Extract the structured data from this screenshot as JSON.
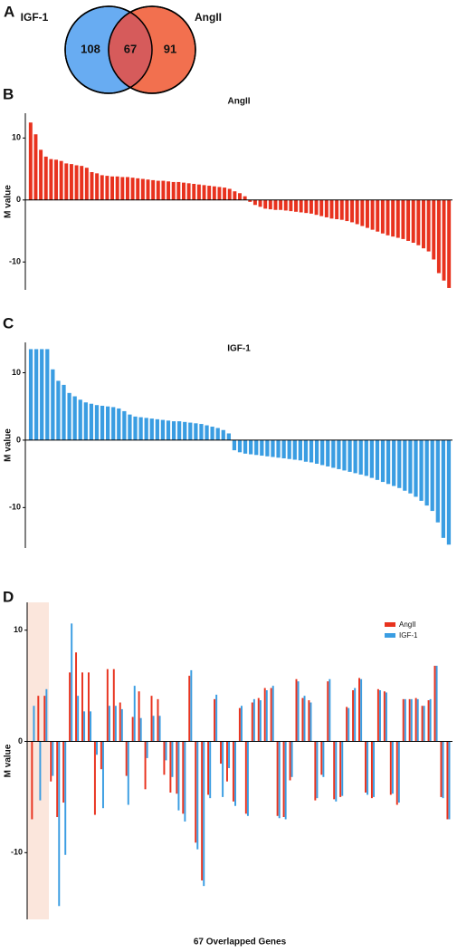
{
  "chart_data": [
    {
      "type": "venn",
      "panel": "A",
      "sets": [
        {
          "name": "IGF-1",
          "color": "#68acf2"
        },
        {
          "name": "AngII",
          "color": "#f2704f"
        }
      ],
      "overlap_color": "#d65b5b",
      "values": [
        108,
        67,
        91
      ]
    },
    {
      "type": "bar",
      "panel": "B",
      "title": "AngII",
      "y_label": "M value",
      "color": "#e8321e",
      "ylim": [
        -14.5,
        14
      ],
      "yticks": [
        -10,
        0,
        10
      ],
      "values": [
        12.5,
        10.6,
        8.1,
        7,
        6.6,
        6.5,
        6.3,
        5.9,
        5.8,
        5.6,
        5.5,
        5.2,
        4.5,
        4.3,
        4,
        3.9,
        3.8,
        3.8,
        3.7,
        3.7,
        3.6,
        3.5,
        3.4,
        3.3,
        3.2,
        3.1,
        3.1,
        3,
        2.9,
        2.9,
        2.8,
        2.7,
        2.6,
        2.5,
        2.4,
        2.3,
        2.2,
        2.1,
        2,
        1.8,
        1.4,
        1.1,
        0.6,
        -0.3,
        -0.8,
        -1.1,
        -1.4,
        -1.5,
        -1.6,
        -1.6,
        -1.7,
        -1.8,
        -1.9,
        -2,
        -2.1,
        -2.2,
        -2.4,
        -2.6,
        -2.8,
        -3,
        -3.1,
        -3.2,
        -3.4,
        -3.6,
        -3.9,
        -4.2,
        -4.5,
        -4.8,
        -5.1,
        -5.4,
        -5.7,
        -5.9,
        -6.1,
        -6.3,
        -6.6,
        -6.9,
        -7.3,
        -7.8,
        -8.3,
        -9.6,
        -11.8,
        -13,
        -14.2
      ]
    },
    {
      "type": "bar",
      "panel": "C",
      "title": "IGF-1",
      "y_label": "M value",
      "color": "#3a9de2",
      "ylim": [
        -16,
        14.5
      ],
      "yticks": [
        -10,
        0,
        10
      ],
      "values": [
        13.5,
        13.5,
        13.5,
        13.5,
        10.5,
        8.8,
        8.2,
        7,
        6.5,
        6,
        5.6,
        5.4,
        5.2,
        5.1,
        5,
        4.9,
        4.7,
        4.3,
        3.8,
        3.5,
        3.4,
        3.3,
        3.2,
        3.1,
        3,
        2.9,
        2.8,
        2.8,
        2.7,
        2.6,
        2.5,
        2.4,
        2.2,
        2,
        1.8,
        1.5,
        1,
        -1.5,
        -1.8,
        -2,
        -2.1,
        -2.2,
        -2.3,
        -2.4,
        -2.5,
        -2.6,
        -2.7,
        -2.8,
        -2.9,
        -3,
        -3.2,
        -3.3,
        -3.5,
        -3.7,
        -3.9,
        -4.1,
        -4.3,
        -4.5,
        -4.7,
        -4.9,
        -5.1,
        -5.3,
        -5.6,
        -5.9,
        -6.2,
        -6.5,
        -6.8,
        -7.1,
        -7.5,
        -7.9,
        -8.4,
        -9,
        -9.7,
        -10.5,
        -12.2,
        -14.5,
        -15.5
      ]
    },
    {
      "type": "grouped_bar",
      "panel": "D",
      "y_label": "M value",
      "x_label": "67 Overlapped Genes",
      "ylim": [
        -16,
        12.5
      ],
      "yticks": [
        -10,
        0,
        10
      ],
      "legend": "top-right",
      "series": [
        {
          "name": "AngII",
          "color": "#e8321e",
          "values": [
            -7,
            4.1,
            4.1,
            -3.6,
            -6.8,
            -5.5,
            6.2,
            8,
            6.2,
            6.2,
            -6.6,
            -2.5,
            6.5,
            6.5,
            3.5,
            -3.1,
            2.2,
            4.5,
            -4.3,
            4.1,
            3.8,
            -3,
            -4.6,
            -4.7,
            -6.5,
            5.9,
            -9.1,
            -12.5,
            -4.8,
            3.8,
            -2,
            -3.6,
            -5.4,
            3,
            -6.5,
            3.5,
            3.9,
            4.8,
            4.8,
            -6.7,
            -6.8,
            -3.5,
            5.6,
            3.9,
            3.7,
            -5.3,
            -3,
            5.4,
            -5.2,
            -5,
            3.1,
            4.6,
            5.7,
            -4.6,
            -5.1,
            4.7,
            4.5,
            -4.8,
            -5.7,
            3.8,
            3.8,
            3.9,
            3.2,
            3.7,
            6.8,
            -5,
            -7
          ]
        },
        {
          "name": "IGF-1",
          "color": "#3a9de2",
          "values": [
            3.2,
            -5.3,
            4.7,
            -3.1,
            -14.8,
            -10.2,
            10.6,
            4.1,
            2.7,
            2.7,
            -1.2,
            -6,
            3.2,
            3.2,
            2.9,
            -5.7,
            5,
            2.1,
            -1.5,
            2.3,
            2.3,
            -1.7,
            -3.2,
            -6.2,
            -7.2,
            6.4,
            -9.7,
            -13,
            -5.1,
            4.2,
            -5,
            -2.4,
            -5.8,
            3.2,
            -6.7,
            3.8,
            3.7,
            4.6,
            5,
            -6.9,
            -7,
            -3.2,
            5.4,
            4.1,
            3.5,
            -5.1,
            -3.2,
            5.6,
            -5.4,
            -4.9,
            3,
            4.8,
            5.6,
            -4.8,
            -5,
            4.6,
            4.4,
            -4.7,
            -5.5,
            3.8,
            3.8,
            3.8,
            3.2,
            3.8,
            6.8,
            -5.1,
            -7
          ]
        }
      ]
    }
  ]
}
